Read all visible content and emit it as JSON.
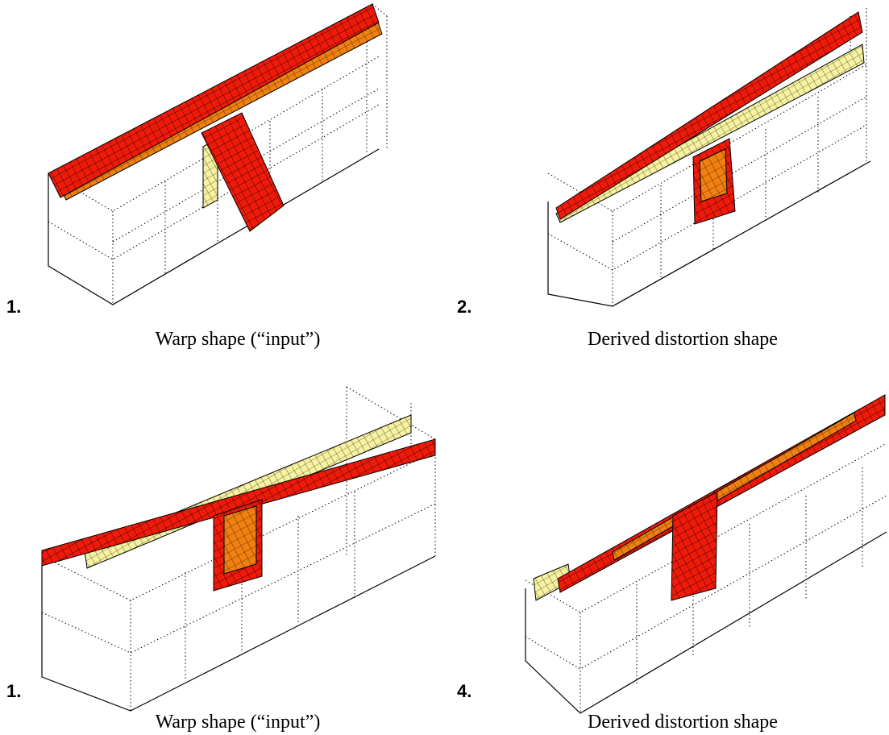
{
  "panels": [
    {
      "number": "1.",
      "caption": "Warp shape (“input”)"
    },
    {
      "number": "2.",
      "caption": "Derived distortion shape"
    },
    {
      "number": "1.",
      "caption": "Warp shape (“input”)"
    },
    {
      "number": "4.",
      "caption": "Derived distortion shape"
    }
  ]
}
